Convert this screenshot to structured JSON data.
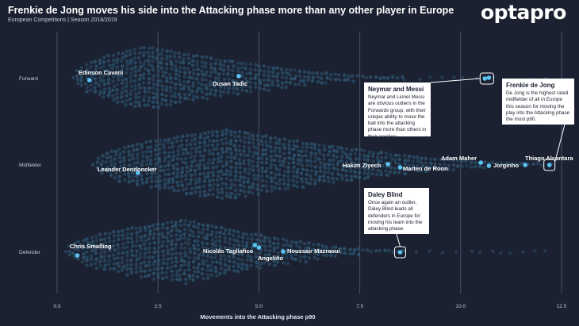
{
  "header": {
    "title": "Frenkie de Jong moves his side into the Attacking phase more than any other player in Europe",
    "subtitle": "European Competitions | Season 2018/2019",
    "logo": "optapro"
  },
  "colors": {
    "background": "#1b2130",
    "swarm": "#2f5b79",
    "highlight": "#5bc3f1",
    "grid": "#4a5163"
  },
  "chart_data": {
    "type": "scatter",
    "xlabel": "Movements into the Attacking phase p90",
    "xlim": [
      0,
      12.5
    ],
    "xticks": [
      0.0,
      2.5,
      5.0,
      7.5,
      10.0,
      12.5
    ],
    "xtick_labels": [
      "0.0",
      "2.5",
      "5.0",
      "7.5",
      "10.0",
      "12.5"
    ],
    "categories": [
      "Forward",
      "Midfielder",
      "Defender"
    ],
    "groups": [
      {
        "name": "Forward",
        "dist_start": 0.4,
        "dist_mode": 2.2,
        "dist_end": 8.6,
        "max_halfwidth": 0.9
      },
      {
        "name": "Midfielder",
        "dist_start": 0.9,
        "dist_mode": 4.2,
        "dist_end": 12.0,
        "max_halfwidth": 1.0
      },
      {
        "name": "Defender",
        "dist_start": 0.2,
        "dist_mode": 3.2,
        "dist_end": 8.6,
        "max_halfwidth": 0.9
      }
    ],
    "highlighted": [
      {
        "name": "Edinson Cavani",
        "group": "Forward",
        "x": 0.8
      },
      {
        "name": "Dusan Tadic",
        "group": "Forward",
        "x": 4.5
      },
      {
        "name": "Neymar",
        "group": "Forward",
        "x": 10.6
      },
      {
        "name": "Lionel Messi",
        "group": "Forward",
        "x": 10.7
      },
      {
        "name": "Leander Dendoncker",
        "group": "Midfielder",
        "x": 2.0
      },
      {
        "name": "Hakim Ziyech",
        "group": "Midfielder",
        "x": 8.2
      },
      {
        "name": "Marten de Roon",
        "group": "Midfielder",
        "x": 8.5
      },
      {
        "name": "Adam Maher",
        "group": "Midfielder",
        "x": 10.5
      },
      {
        "name": "Jorginho",
        "group": "Midfielder",
        "x": 10.7
      },
      {
        "name": "Thiago Alcantara",
        "group": "Midfielder",
        "x": 11.6
      },
      {
        "name": "Frenkie de Jong",
        "group": "Midfielder",
        "x": 12.2
      },
      {
        "name": "Chris Smalling",
        "group": "Defender",
        "x": 0.5
      },
      {
        "name": "Nicolás Tagliafico",
        "group": "Defender",
        "x": 4.9
      },
      {
        "name": "Angeliño",
        "group": "Defender",
        "x": 5.0
      },
      {
        "name": "Noussair Mazraoui",
        "group": "Defender",
        "x": 5.6
      },
      {
        "name": "Daley Blind",
        "group": "Defender",
        "x": 8.5
      }
    ],
    "labels": {
      "cavani": "Edinson Cavani",
      "tadic": "Dusan Tadic",
      "dendoncker": "Leander Dendoncker",
      "ziyech": "Hakim Ziyech",
      "deroon": "Marten de Roon",
      "maher": "Adam Maher",
      "jorginho": "Jorginho",
      "thiago": "Thiago Alcantara",
      "smalling": "Chris Smalling",
      "tagliafico": "Nicolás Tagliafico",
      "angelino": "Angeliño",
      "mazraoui": "Noussair Mazraoui"
    }
  },
  "callouts": {
    "neymar_messi": {
      "title": "Neymar and Messi",
      "body": "Neymar and Lionel Messi are obvious outliers in the Forwards group, with their unique ability to move the ball into the attacking phase more than others in their position."
    },
    "de_jong": {
      "title": "Frenkie de Jong",
      "body": "De Jong is the highest rated midfielder of all in Europe this season for moving the play into the Attacking phase the most p90."
    },
    "blind": {
      "title": "Daley Blind",
      "body": "Once again an outlier, Daley Blind leads all defenders in Europe for moving his team into the attacking phase."
    }
  }
}
